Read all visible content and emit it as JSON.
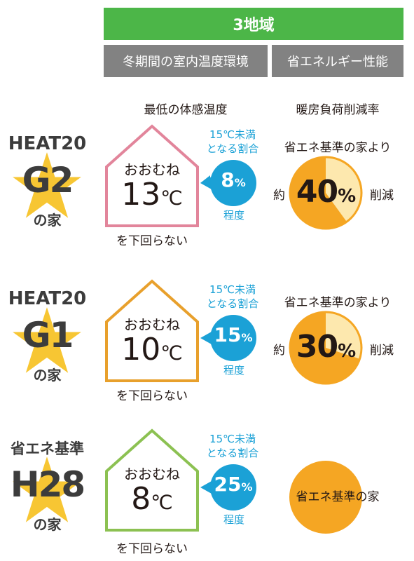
{
  "header": {
    "region": "3地域",
    "col1": "冬期間の室内温度環境",
    "col2": "省エネルギー性能",
    "sub1": "最低の体感温度",
    "sub2": "暖房負荷削減率"
  },
  "colors": {
    "green": "#4cb648",
    "gray": "#828282",
    "blue": "#1ba1d6",
    "orange": "#f5a623",
    "pie_light": "#fde8ae",
    "star": "#f7c633",
    "house_pink": "#e2859b",
    "house_orange": "#e8a02c",
    "house_green": "#8cc152"
  },
  "rows": [
    {
      "label_top": "HEAT20",
      "grade": "G2",
      "label_bottom": "の家",
      "house_label": "おおむね",
      "temp": "13",
      "temp_unit": "℃",
      "temp_note": "を下回らない",
      "ratio_label_1": "15℃未満",
      "ratio_label_2": "となる割合",
      "ratio_value": "8",
      "ratio_unit": "%",
      "ratio_degree": "程度",
      "compare": "省エネ基準の家より",
      "approx": "約",
      "reduction": "40",
      "reduction_unit": "%",
      "reduction_suffix": "削減",
      "reduction_fraction": 0.4,
      "house_color": "#e2859b"
    },
    {
      "label_top": "HEAT20",
      "grade": "G1",
      "label_bottom": "の家",
      "house_label": "おおむね",
      "temp": "10",
      "temp_unit": "℃",
      "temp_note": "を下回らない",
      "ratio_label_1": "15℃未満",
      "ratio_label_2": "となる割合",
      "ratio_value": "15",
      "ratio_unit": "%",
      "ratio_degree": "程度",
      "compare": "省エネ基準の家より",
      "approx": "約",
      "reduction": "30",
      "reduction_unit": "%",
      "reduction_suffix": "削減",
      "reduction_fraction": 0.3,
      "house_color": "#e8a02c"
    },
    {
      "label_top": "省エネ基準",
      "grade": "H28",
      "label_bottom": "の家",
      "house_label": "おおむね",
      "temp": "8",
      "temp_unit": "℃",
      "temp_note": "を下回らない",
      "ratio_label_1": "15℃未満",
      "ratio_label_2": "となる割合",
      "ratio_value": "25",
      "ratio_unit": "%",
      "ratio_degree": "程度",
      "base_label": "省エネ基準の家",
      "reduction_fraction": 0,
      "house_color": "#8cc152"
    }
  ]
}
